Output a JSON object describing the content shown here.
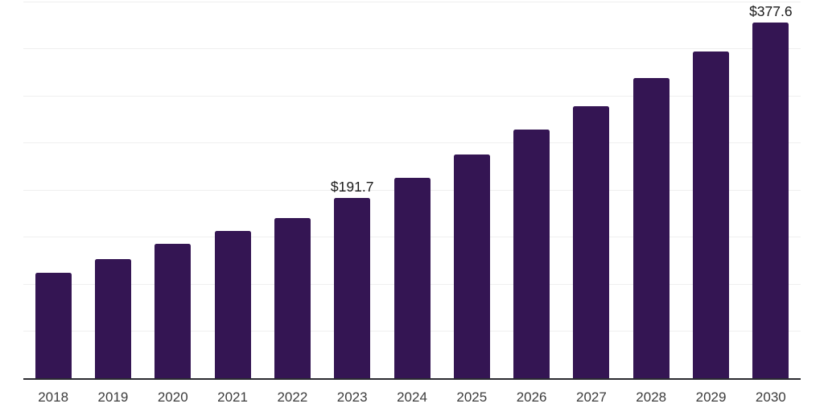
{
  "chart_data": {
    "type": "bar",
    "categories": [
      "2018",
      "2019",
      "2020",
      "2021",
      "2022",
      "2023",
      "2024",
      "2025",
      "2026",
      "2027",
      "2028",
      "2029",
      "2030"
    ],
    "values": [
      112.4,
      126.1,
      142.8,
      156.0,
      169.9,
      191.7,
      212.9,
      237.6,
      264.1,
      288.8,
      318.7,
      347.2,
      377.6
    ],
    "data_labels": [
      {
        "category": "2023",
        "text": "$191.7"
      },
      {
        "category": "2030",
        "text": "$377.6"
      }
    ],
    "xlabel": "",
    "ylabel": "",
    "title": "",
    "ylim": [
      0,
      400
    ],
    "grid_step": 50,
    "grid": "horizontal-only",
    "legend": "none",
    "y_axis_labels_visible": false,
    "colors": {
      "bar": "#341553",
      "axis_line": "#2b2b31",
      "gridline": "#efefef",
      "tick_label": "#3c3c3c",
      "value_label": "#1a1a1a",
      "background": "#ffffff"
    }
  }
}
